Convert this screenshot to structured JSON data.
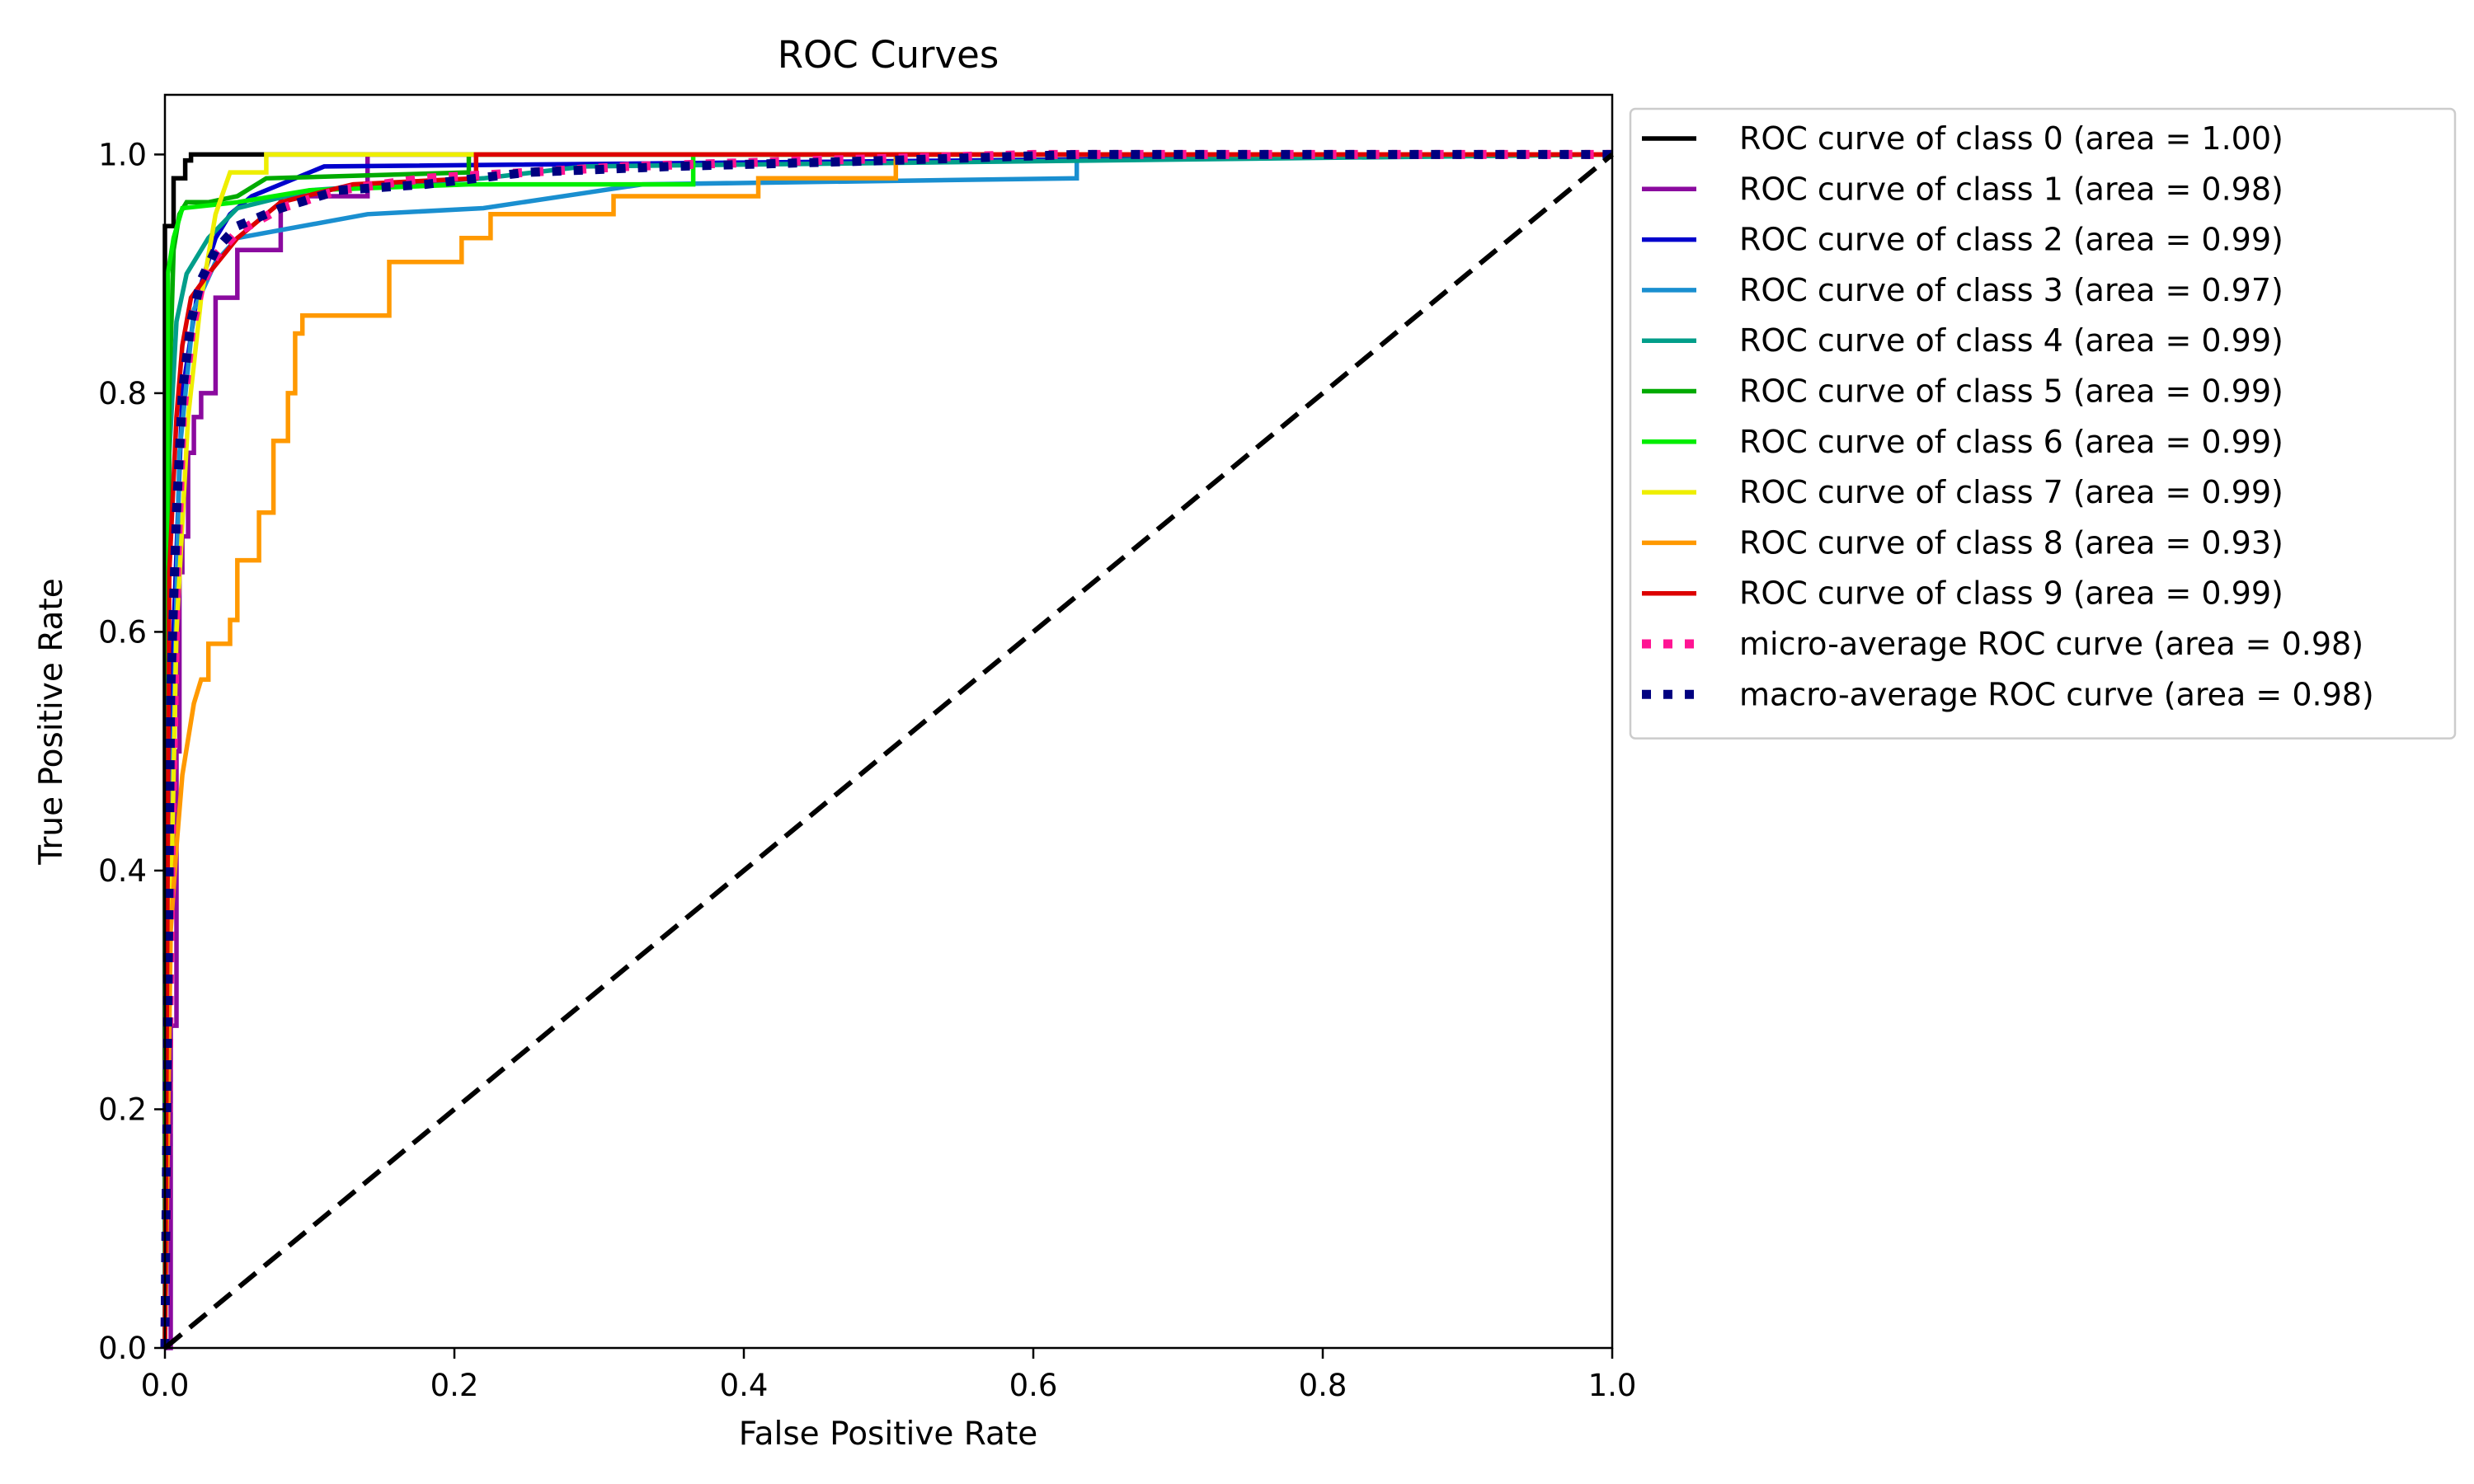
{
  "chart_data": {
    "type": "line",
    "title": "ROC Curves",
    "xlabel": "False Positive Rate",
    "ylabel": "True Positive Rate",
    "xlim": [
      0.0,
      1.0
    ],
    "ylim": [
      0.0,
      1.05
    ],
    "xticks": [
      "0.0",
      "0.2",
      "0.4",
      "0.6",
      "0.8",
      "1.0"
    ],
    "yticks": [
      "0.0",
      "0.2",
      "0.4",
      "0.6",
      "0.8",
      "1.0"
    ],
    "grid": false,
    "legend_position": "outside right, top",
    "series": [
      {
        "name": "ROC curve of class 0 (area = 1.00)",
        "color": "#000000",
        "style": "solid",
        "x": [
          0,
          0,
          0.006,
          0.006,
          0.014,
          0.014,
          0.018,
          0.018,
          1
        ],
        "y": [
          0,
          0.94,
          0.94,
          0.98,
          0.98,
          0.995,
          0.995,
          1.0,
          1.0
        ]
      },
      {
        "name": "ROC curve of class 1 (area = 0.98)",
        "color": "#8b0a9f",
        "style": "solid",
        "x": [
          0,
          0.004,
          0.004,
          0.008,
          0.008,
          0.01,
          0.01,
          0.012,
          0.012,
          0.016,
          0.016,
          0.02,
          0.02,
          0.025,
          0.025,
          0.035,
          0.035,
          0.05,
          0.05,
          0.08,
          0.08,
          0.14,
          0.14,
          1
        ],
        "y": [
          0,
          0,
          0.27,
          0.27,
          0.5,
          0.5,
          0.65,
          0.65,
          0.68,
          0.68,
          0.75,
          0.75,
          0.78,
          0.78,
          0.8,
          0.8,
          0.88,
          0.88,
          0.92,
          0.92,
          0.965,
          0.965,
          1.0,
          1.0
        ]
      },
      {
        "name": "ROC curve of class 2 (area = 0.99)",
        "color": "#0000cc",
        "style": "solid",
        "x": [
          0,
          0.006,
          0.006,
          0.012,
          0.012,
          0.022,
          0.022,
          0.035,
          0.035,
          0.045,
          0.045,
          0.06,
          0.06,
          0.11,
          0.11,
          1
        ],
        "y": [
          0,
          0.6,
          0.6,
          0.8,
          0.8,
          0.88,
          0.88,
          0.93,
          0.93,
          0.95,
          0.95,
          0.965,
          0.965,
          0.99,
          0.99,
          1.0
        ]
      },
      {
        "name": "ROC curve of class 3 (area = 0.97)",
        "color": "#1a8fd0",
        "style": "solid",
        "x": [
          0,
          0.004,
          0.004,
          0.01,
          0.01,
          0.02,
          0.02,
          0.035,
          0.035,
          0.05,
          0.05,
          0.14,
          0.14,
          0.22,
          0.22,
          0.33,
          0.33,
          0.63,
          0.63,
          1
        ],
        "y": [
          0,
          0.4,
          0.4,
          0.75,
          0.75,
          0.87,
          0.87,
          0.91,
          0.91,
          0.93,
          0.93,
          0.95,
          0.95,
          0.955,
          0.955,
          0.975,
          0.975,
          0.98,
          1.0,
          1.0
        ]
      },
      {
        "name": "ROC curve of class 4 (area = 0.99)",
        "color": "#009e8a",
        "style": "solid",
        "x": [
          0,
          0.003,
          0.003,
          0.008,
          0.008,
          0.015,
          0.015,
          0.03,
          0.03,
          0.05,
          0.05,
          0.1,
          0.1,
          0.22,
          0.22,
          0.29,
          0.29,
          1
        ],
        "y": [
          0,
          0.75,
          0.75,
          0.86,
          0.86,
          0.9,
          0.9,
          0.93,
          0.93,
          0.955,
          0.955,
          0.97,
          0.97,
          0.98,
          0.98,
          0.99,
          0.99,
          1.0
        ]
      },
      {
        "name": "ROC curve of class 5 (area = 0.99)",
        "color": "#00aa00",
        "style": "solid",
        "x": [
          0,
          0.003,
          0.003,
          0.006,
          0.006,
          0.01,
          0.01,
          0.015,
          0.015,
          0.03,
          0.03,
          0.05,
          0.05,
          0.07,
          0.07,
          0.21,
          0.21,
          1
        ],
        "y": [
          0,
          0.8,
          0.8,
          0.92,
          0.92,
          0.95,
          0.95,
          0.96,
          0.96,
          0.96,
          0.96,
          0.965,
          0.965,
          0.98,
          0.98,
          0.985,
          1.0,
          1.0
        ]
      },
      {
        "name": "ROC curve of class 6 (area = 0.99)",
        "color": "#00ee00",
        "style": "solid",
        "x": [
          0,
          0.002,
          0.002,
          0.006,
          0.006,
          0.012,
          0.012,
          0.05,
          0.05,
          0.1,
          0.1,
          0.21,
          0.21,
          0.365,
          0.365,
          1
        ],
        "y": [
          0,
          0.9,
          0.9,
          0.93,
          0.93,
          0.955,
          0.955,
          0.96,
          0.96,
          0.97,
          0.97,
          0.975,
          0.975,
          0.975,
          1.0,
          1.0
        ]
      },
      {
        "name": "ROC curve of class 7 (area = 0.99)",
        "color": "#eeee00",
        "style": "solid",
        "x": [
          0,
          0.003,
          0.003,
          0.008,
          0.008,
          0.016,
          0.016,
          0.025,
          0.025,
          0.035,
          0.035,
          0.045,
          0.045,
          0.07,
          0.07,
          0.2,
          0.2,
          1
        ],
        "y": [
          0,
          0.3,
          0.3,
          0.6,
          0.6,
          0.78,
          0.78,
          0.88,
          0.88,
          0.95,
          0.95,
          0.985,
          0.985,
          0.985,
          1.0,
          1.0,
          1.0,
          1.0
        ]
      },
      {
        "name": "ROC curve of class 8 (area = 0.93)",
        "color": "#ff9900",
        "style": "solid",
        "x": [
          0,
          0.004,
          0.004,
          0.008,
          0.008,
          0.012,
          0.012,
          0.016,
          0.016,
          0.02,
          0.02,
          0.025,
          0.025,
          0.03,
          0.03,
          0.045,
          0.045,
          0.05,
          0.05,
          0.065,
          0.065,
          0.075,
          0.075,
          0.085,
          0.085,
          0.09,
          0.09,
          0.095,
          0.095,
          0.155,
          0.155,
          0.205,
          0.205,
          0.225,
          0.225,
          0.31,
          0.31,
          0.41,
          0.41,
          0.505,
          0.505,
          0.65,
          0.65,
          1
        ],
        "y": [
          0,
          0.35,
          0.35,
          0.42,
          0.42,
          0.48,
          0.48,
          0.51,
          0.51,
          0.54,
          0.54,
          0.56,
          0.56,
          0.56,
          0.59,
          0.59,
          0.61,
          0.61,
          0.66,
          0.66,
          0.7,
          0.7,
          0.76,
          0.76,
          0.8,
          0.8,
          0.85,
          0.85,
          0.865,
          0.865,
          0.91,
          0.91,
          0.93,
          0.93,
          0.95,
          0.95,
          0.965,
          0.965,
          0.98,
          0.98,
          1.0,
          1.0,
          1.0,
          1.0
        ]
      },
      {
        "name": "ROC curve of class 9 (area = 0.99)",
        "color": "#dd0000",
        "style": "solid",
        "x": [
          0,
          0.003,
          0.003,
          0.008,
          0.008,
          0.012,
          0.012,
          0.018,
          0.018,
          0.03,
          0.03,
          0.05,
          0.05,
          0.08,
          0.08,
          0.13,
          0.13,
          0.215,
          0.215,
          1
        ],
        "y": [
          0,
          0.65,
          0.65,
          0.78,
          0.78,
          0.84,
          0.84,
          0.88,
          0.88,
          0.9,
          0.9,
          0.93,
          0.93,
          0.96,
          0.96,
          0.975,
          0.975,
          0.98,
          1.0,
          1.0
        ]
      },
      {
        "name": "micro-average ROC curve (area = 0.98)",
        "color": "#ff1493",
        "style": "dotted",
        "x": [
          0,
          0.004,
          0.008,
          0.012,
          0.018,
          0.025,
          0.035,
          0.05,
          0.08,
          0.12,
          0.18,
          0.25,
          0.32,
          0.45,
          0.6,
          1
        ],
        "y": [
          0,
          0.4,
          0.65,
          0.78,
          0.85,
          0.89,
          0.915,
          0.935,
          0.955,
          0.97,
          0.98,
          0.985,
          0.99,
          0.995,
          1.0,
          1.0
        ]
      },
      {
        "name": "macro-average ROC curve (area = 0.98)",
        "color": "#000080",
        "style": "dotted",
        "x": [
          0,
          0.004,
          0.008,
          0.012,
          0.018,
          0.025,
          0.035,
          0.05,
          0.08,
          0.12,
          0.18,
          0.25,
          0.35,
          0.5,
          0.63,
          1
        ],
        "y": [
          0,
          0.55,
          0.7,
          0.8,
          0.86,
          0.895,
          0.92,
          0.94,
          0.955,
          0.97,
          0.975,
          0.985,
          0.99,
          0.995,
          1.0,
          1.0
        ]
      },
      {
        "name": "",
        "color": "#000000",
        "style": "dashed",
        "x": [
          0,
          1
        ],
        "y": [
          0,
          1
        ]
      }
    ]
  }
}
